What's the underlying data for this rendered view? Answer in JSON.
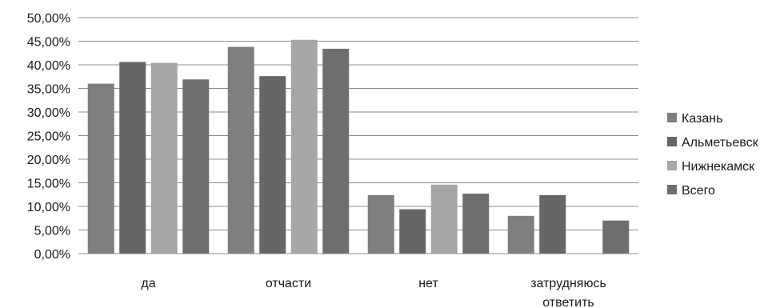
{
  "chart_data": {
    "type": "bar",
    "categories": [
      [
        "да"
      ],
      [
        "отчасти"
      ],
      [
        "нет"
      ],
      [
        "затрудняюсь",
        "ответить"
      ]
    ],
    "series": [
      {
        "name": "Казань",
        "values": [
          36.0,
          43.8,
          12.4,
          8.0
        ],
        "color": "#7f7f7f"
      },
      {
        "name": "Альметьевск",
        "values": [
          40.6,
          37.6,
          9.4,
          12.4
        ],
        "color": "#666666"
      },
      {
        "name": "Нижнекамск",
        "values": [
          40.4,
          45.3,
          14.6,
          0.0
        ],
        "color": "#a6a6a6"
      },
      {
        "name": "Всего",
        "values": [
          36.9,
          43.4,
          12.7,
          7.0
        ],
        "color": "#6e6e6e"
      }
    ],
    "ylim": [
      0,
      50
    ],
    "yticks": [
      "0,00%",
      "5,00%",
      "10,00%",
      "15,00%",
      "20,00%",
      "25,00%",
      "30,00%",
      "35,00%",
      "40,00%",
      "45,00%",
      "50,00%"
    ],
    "grid": true,
    "legend_position": "right"
  }
}
